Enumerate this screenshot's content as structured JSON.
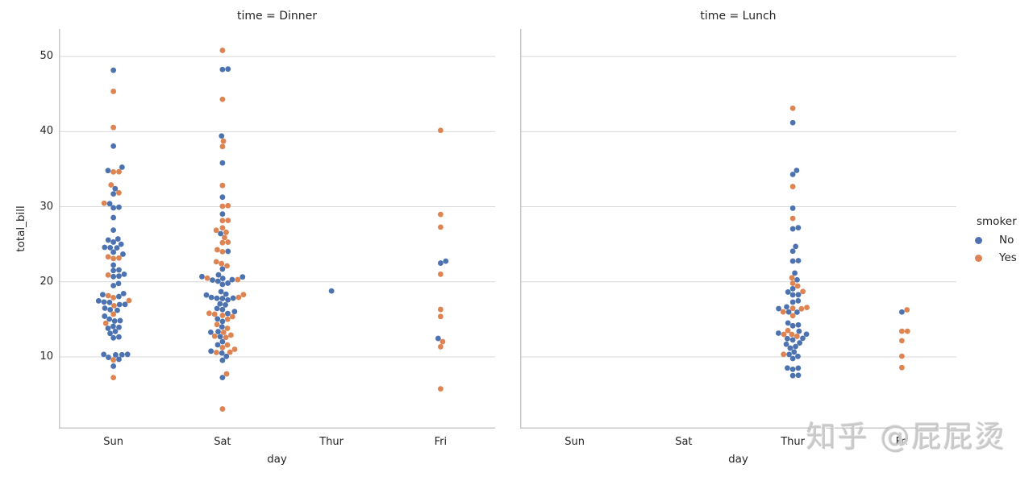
{
  "watermark": {
    "text": "知乎 @屁屁烫"
  },
  "legend": {
    "title": "smoker",
    "items": [
      {
        "label": "No",
        "color": "#4c72b0"
      },
      {
        "label": "Yes",
        "color": "#dd8452"
      }
    ]
  },
  "chart_data": {
    "type": "scatter",
    "subtype": "swarm",
    "xlabel": "day",
    "ylabel": "total_bill",
    "categories": [
      "Sun",
      "Sat",
      "Thur",
      "Fri"
    ],
    "yticks": [
      10,
      20,
      30,
      40,
      50
    ],
    "ylim": [
      0.45,
      53.66
    ],
    "grid": true,
    "hue": {
      "name": "smoker",
      "levels": [
        "No",
        "Yes"
      ],
      "colors": {
        "No": "#4c72b0",
        "Yes": "#dd8452"
      }
    },
    "facets": [
      {
        "title": "time = Dinner",
        "points": {
          "Sun": {
            "No": [
              16.99,
              10.34,
              21.01,
              23.68,
              24.59,
              25.29,
              8.77,
              26.88,
              15.04,
              14.78,
              10.27,
              35.26,
              15.42,
              18.43,
              14.83,
              21.58,
              10.33,
              16.29,
              16.97,
              17.46,
              13.94,
              9.68,
              30.4,
              18.29,
              22.23,
              32.4,
              28.55,
              18.04,
              12.54,
              10.29,
              34.81,
              9.94,
              25.56,
              19.49,
              38.07,
              23.95,
              25.71,
              17.31,
              29.93,
              14.07,
              13.13,
              17.26,
              24.55,
              19.77,
              29.85,
              48.17,
              25.0,
              13.39,
              16.49,
              21.5,
              12.66,
              16.21,
              13.81,
              24.52,
              20.76,
              31.71,
              20.69
            ],
            "Yes": [
              17.51,
              7.25,
              31.85,
              16.82,
              32.9,
              17.89,
              14.48,
              9.6,
              34.63,
              34.65,
              23.33,
              45.35,
              23.17,
              40.55,
              20.9,
              30.46,
              18.15,
              23.1,
              15.69
            ]
          },
          "Sat": {
            "No": [
              20.65,
              17.92,
              20.29,
              15.77,
              39.42,
              19.82,
              17.81,
              13.37,
              12.69,
              21.7,
              19.65,
              9.55,
              18.35,
              15.06,
              20.69,
              17.78,
              24.06,
              16.31,
              16.93,
              18.69,
              31.27,
              16.04,
              26.41,
              48.27,
              17.59,
              20.08,
              16.45,
              20.23,
              12.02,
              17.07,
              14.73,
              10.51,
              20.92,
              18.24,
              14.0,
              7.25,
              48.33,
              20.45,
              13.28,
              11.61,
              10.77,
              10.07,
              35.83,
              29.03,
              17.82
            ],
            "Yes": [
              38.01,
              11.24,
              20.29,
              13.81,
              11.02,
              18.29,
              3.07,
              15.01,
              26.86,
              25.28,
              17.92,
              44.3,
              22.42,
              15.36,
              20.49,
              25.21,
              14.31,
              10.59,
              10.63,
              50.81,
              15.81,
              26.59,
              38.73,
              24.27,
              12.76,
              30.06,
              25.89,
              13.27,
              28.17,
              12.9,
              28.15,
              11.59,
              7.74,
              30.14,
              22.12,
              24.01,
              15.69,
              15.53,
              12.6,
              32.83,
              27.18,
              22.67
            ]
          },
          "Thur": {
            "No": [
              18.78
            ],
            "Yes": []
          },
          "Fri": {
            "No": [
              22.49,
              22.75,
              12.46
            ],
            "Yes": [
              28.97,
              5.75,
              16.32,
              40.17,
              27.28,
              12.03,
              21.01,
              11.35,
              15.38
            ]
          }
        }
      },
      {
        "title": "time = Lunch",
        "points": {
          "Sun": {
            "No": [],
            "Yes": []
          },
          "Sat": {
            "No": [],
            "Yes": []
          },
          "Thur": {
            "No": [
              27.2,
              22.76,
              17.29,
              16.66,
              10.07,
              15.98,
              34.83,
              13.03,
              18.28,
              24.71,
              21.16,
              10.65,
              12.43,
              24.08,
              11.69,
              13.42,
              14.26,
              15.95,
              12.48,
              29.8,
              8.52,
              14.52,
              11.38,
              22.82,
              19.08,
              20.27,
              11.17,
              12.26,
              18.26,
              8.51,
              10.33,
              14.15,
              13.16,
              17.47,
              34.3,
              41.19,
              27.05,
              16.43,
              8.35,
              18.64,
              11.87,
              9.78,
              7.51,
              7.56
            ],
            "Yes": [
              19.44,
              32.68,
              16.0,
              19.81,
              28.44,
              15.48,
              16.58,
              10.34,
              43.11,
              13.0,
              13.51,
              18.71,
              12.74,
              13.0,
              16.4,
              20.53,
              16.47
            ]
          },
          "Fri": {
            "No": [
              15.98
            ],
            "Yes": [
              12.16,
              13.42,
              8.58,
              13.42,
              16.27,
              10.09
            ]
          }
        }
      }
    ]
  }
}
